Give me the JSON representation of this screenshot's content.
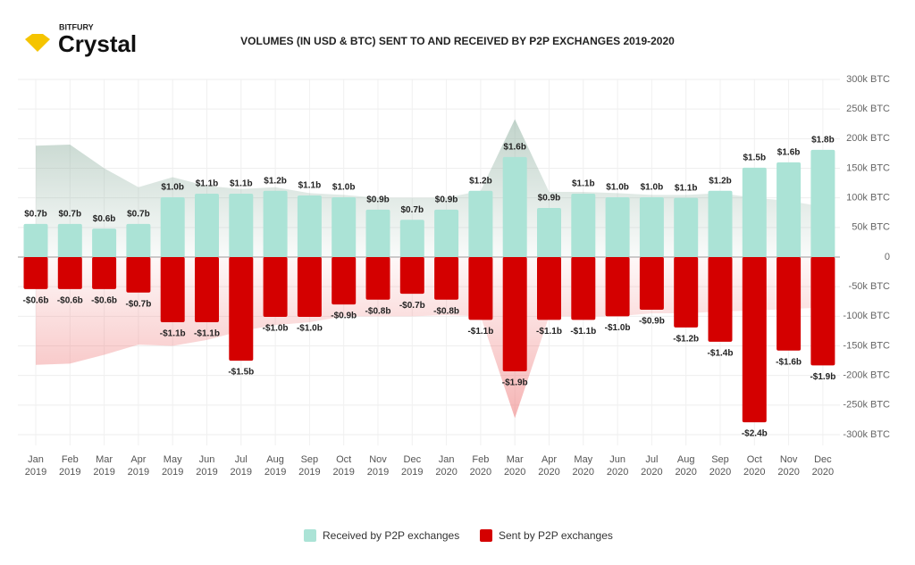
{
  "brand": "BITFURY",
  "product": "Crystal",
  "chart_data": {
    "type": "bar",
    "title": "VOLUMES (IN USD & BTC) SENT TO AND RECEIVED BY P2P EXCHANGES 2019-2020",
    "categories": [
      "Jan 2019",
      "Feb 2019",
      "Mar 2019",
      "Apr 2019",
      "May 2019",
      "Jun 2019",
      "Jul 2019",
      "Aug 2019",
      "Sep 2019",
      "Oct 2019",
      "Nov 2019",
      "Dec 2019",
      "Jan 2020",
      "Feb 2020",
      "Mar 2020",
      "Apr 2020",
      "May 2020",
      "Jun 2020",
      "Jul 2020",
      "Aug 2020",
      "Sep 2020",
      "Oct 2020",
      "Nov 2020",
      "Dec 2020"
    ],
    "series": [
      {
        "name": "Received by P2P exchanges",
        "color": "#abe3d6",
        "values": [
          56000,
          56000,
          48000,
          56000,
          101000,
          107000,
          107000,
          112000,
          104000,
          101000,
          80000,
          63000,
          80000,
          112000,
          169000,
          83000,
          107000,
          101000,
          101000,
          100000,
          112000,
          151000,
          160000,
          181000
        ],
        "usd_labels": [
          "$0.7b",
          "$0.7b",
          "$0.6b",
          "$0.7b",
          "$1.0b",
          "$1.1b",
          "$1.1b",
          "$1.2b",
          "$1.1b",
          "$1.0b",
          "$0.9b",
          "$0.7b",
          "$0.9b",
          "$1.2b",
          "$1.6b",
          "$0.9b",
          "$1.1b",
          "$1.0b",
          "$1.0b",
          "$1.1b",
          "$1.2b",
          "$1.5b",
          "$1.6b",
          "$1.8b"
        ]
      },
      {
        "name": "Sent by P2P exchanges",
        "color": "#d40000",
        "values": [
          -54000,
          -54000,
          -54000,
          -60000,
          -110000,
          -110000,
          -175000,
          -101000,
          -101000,
          -80000,
          -72000,
          -62000,
          -72000,
          -106000,
          -193000,
          -106000,
          -106000,
          -100000,
          -89000,
          -119000,
          -143000,
          -279000,
          -158000,
          -183000
        ],
        "usd_labels": [
          "-$0.6b",
          "-$0.6b",
          "-$0.6b",
          "-$0.7b",
          "-$1.1b",
          "-$1.1b",
          "-$1.5b",
          "-$1.0b",
          "-$1.0b",
          "-$0.9b",
          "-$0.8b",
          "-$0.7b",
          "-$0.8b",
          "-$1.1b",
          "-$1.9b",
          "-$1.1b",
          "-$1.1b",
          "-$1.0b",
          "-$0.9b",
          "-$1.2b",
          "-$1.4b",
          "-$2.4b",
          "-$1.6b",
          "-$1.9b"
        ]
      }
    ],
    "areas": [
      {
        "color": "#9fbcae",
        "values": [
          188000,
          190000,
          150000,
          118000,
          135000,
          120000,
          115000,
          118000,
          108000,
          105000,
          100000,
          100000,
          100000,
          112000,
          233000,
          110000,
          110000,
          108000,
          105000,
          105000,
          108000,
          100000,
          95000,
          85000
        ]
      },
      {
        "color": "#f2a0a0",
        "values": [
          -182000,
          -180000,
          -165000,
          -148000,
          -150000,
          -140000,
          -125000,
          -115000,
          -110000,
          -100000,
          -100000,
          -100000,
          -98000,
          -100000,
          -272000,
          -100000,
          -100000,
          -100000,
          -95000,
          -95000,
          -92000,
          -90000,
          -88000,
          -85000
        ]
      }
    ],
    "ylim": [
      -300000,
      300000
    ],
    "yticks": [
      {
        "value": 300000,
        "label": "300k BTC"
      },
      {
        "value": 250000,
        "label": "250k BTC"
      },
      {
        "value": 200000,
        "label": "200k BTC"
      },
      {
        "value": 150000,
        "label": "150k BTC"
      },
      {
        "value": 100000,
        "label": "100k BTC"
      },
      {
        "value": 50000,
        "label": "50k BTC"
      },
      0,
      {
        "value": -50000,
        "label": "-50k BTC"
      },
      {
        "value": -100000,
        "label": "-100k BTC"
      },
      {
        "value": -150000,
        "label": "-150k BTC"
      },
      {
        "value": -200000,
        "label": "-200k BTC"
      },
      {
        "value": -250000,
        "label": "-250k BTC"
      },
      {
        "value": -300000,
        "label": "-300k BTC"
      }
    ],
    "grid": true
  }
}
